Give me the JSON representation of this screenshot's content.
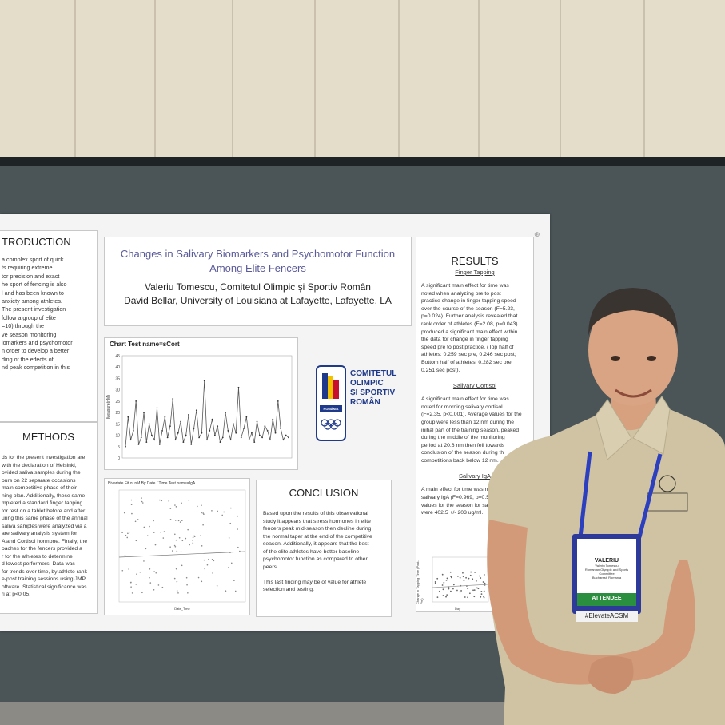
{
  "poster": {
    "intro": {
      "heading": "TRODUCTION",
      "lines": [
        "a complex sport of quick",
        "ts requiring extreme",
        "tor precision and exact",
        "he sport of fencing is also",
        "l and has been known to",
        "anxiety among athletes.",
        "The present investigation",
        "follow a group of elite",
        "=10) through the",
        "ve season monitoring",
        "iomarkers and psychomotor",
        "n order to develop a better",
        "ding of the effects of",
        "nd peak competition in this"
      ]
    },
    "methods": {
      "heading": "METHODS",
      "lines": [
        "ds for the present investigation are",
        "with the declaration of Helsinki,",
        "ovided saliva samples during the",
        "ours on 22 separate occasions",
        "main competitive phase of their",
        "ning plan. Additionally, these same",
        "mpleted a standard finger tapping",
        "tor test on a tablet before and after",
        "uring this same phase of the annual",
        "saliva samples were analyzed via a",
        "are salivary analysis system for",
        "A and Cortisol hormone. Finally, the",
        "oaches for the fencers provided a",
        "r for the athletes to determine",
        "d lowest performers. Data was",
        "for trends over time, by athlete rank",
        "e-post training sessions using JMP",
        "oftware. Statistical significance was",
        "ri at p<0.05."
      ]
    },
    "title_lines": [
      "Changes in Salivary Biomarkers and Psychomotor Function",
      "Among Elite Fencers"
    ],
    "author_lines": [
      "Valeriu Tomescu, Comitetul Olimpic și Sportiv Român",
      "David Bellar, University of Louisiana at Lafayette, Lafayette, LA"
    ],
    "chart1": {
      "title": "Chart Test name=sCort",
      "ylabel": "Measure(nM)"
    },
    "chart2": {
      "title": "Bivariate Fit of nM By Date / Time Test name=IgA",
      "xlabel": "Date_Time"
    },
    "chart3": {
      "ylabel": "Change in Tapping Time (Post-Pre)",
      "xlabel": "Day"
    },
    "logo": {
      "lines": [
        "COMITETUL",
        "OLIMPIC",
        "ȘI SPORTIV",
        "ROMÂN"
      ],
      "band": "ROMÂNIA"
    },
    "conclusion": {
      "heading": "CONCLUSION",
      "lines": [
        "Based upon the results of this observational",
        "study it appears that stress hormones in elite",
        "fencers peak mid-season then decline during",
        "the normal taper at the end of the competitive",
        "season. Additionally, it appears that the best",
        "of the elite athletes have better baseline",
        "psychomotor function as compared to other",
        "peers.",
        "",
        "This last finding may be of value for athlete",
        "selection and testing."
      ]
    },
    "results": {
      "heading": "RESULTS",
      "sub1": "Finger Tapping",
      "p1": [
        "A significant main effect for time was",
        "noted when analyzing pre to post",
        "practice change in finger tapping speed",
        "over the course of the season (F=5.23,",
        "p=0.024). Further analysis revealed that",
        "rank order of athletes (F=2.08, p=0.043)",
        "produced a significant main effect within",
        "the data for change in finger tapping",
        "speed pre to post practice. (Top half of",
        "athletes: 0.259 sec pre, 0.246 sec post;",
        "Bottom half of athletes: 0.282 sec pre,",
        "0.251 sec post)."
      ],
      "sub2": "Salivary Cortisol",
      "p2": [
        "A significant main effect for time was",
        "noted for morning salivary cortisol",
        "(F=2.35, p<0.001). Average values for the",
        "group were less than 12 nm during the",
        "initial part of the training season, peaked",
        "during the middle of the monitoring",
        "period at 20.6 nm then fell towards",
        "conclusion of the season during th",
        "competitions back below 12 nm."
      ],
      "sub3": "Salivary IgA",
      "p3": [
        "A main effect for time was not",
        "salivary IgA (F=0.969, p=0.504)",
        "values for the season for saliv",
        "were 402.5 +/- 203 ug/ml."
      ]
    }
  },
  "badge": {
    "name": "VALERIU",
    "details": [
      "Valeriu Tomescu",
      "Romanian Olympic and Sports",
      "Committee",
      "Bucharest, Romania"
    ],
    "role": "ATTENDEE",
    "hashtag": "#ElevateACSM"
  },
  "colors": {
    "wall": "#e4ddc9",
    "board": "#4b5558",
    "shirt": "#cfc3a4",
    "lanyard": "#2b3fbf",
    "title": "#5b5b9a"
  },
  "chart_data": [
    {
      "type": "line",
      "title": "Chart Test name=sCort",
      "ylabel": "Measure(nM)",
      "ylim": [
        0,
        45
      ],
      "series": [
        {
          "values": [
            5,
            18,
            8,
            12,
            25,
            6,
            9,
            20,
            7,
            15,
            10,
            8,
            22,
            6,
            12,
            18,
            9,
            14,
            26,
            8,
            11,
            16,
            7,
            10,
            19,
            6,
            13,
            21,
            9,
            11,
            34,
            8,
            12,
            17,
            10,
            14,
            7,
            9,
            20,
            12,
            8,
            15,
            11,
            31,
            9,
            13,
            18,
            8,
            11,
            7,
            16,
            10,
            9,
            14,
            12,
            8,
            17,
            11,
            25,
            13,
            8,
            10,
            9
          ]
        }
      ]
    },
    {
      "type": "scatter",
      "title": "Bivariate Fit of nM By Date / Time Test name=IgA",
      "xlabel": "Date_Time"
    }
  ]
}
